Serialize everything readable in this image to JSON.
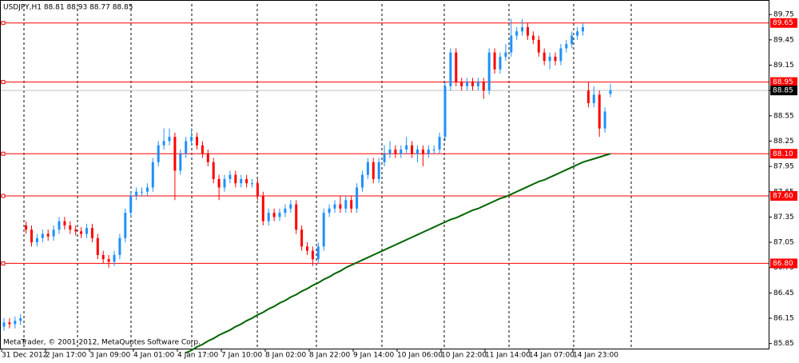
{
  "chart_data": {
    "type": "candlestick",
    "title": "USDJPY,H1 88.81 88.93 88.77 88.85",
    "footer": "MetaTrader, © 2001-2012, MetaQuotes Software Corp.",
    "up_color": "#1e90ff",
    "down_color": "#ff0000",
    "ylim": [
      85.79,
      89.875
    ],
    "yticks": [
      89.75,
      89.45,
      89.15,
      88.85,
      88.55,
      88.25,
      87.95,
      87.65,
      87.35,
      87.05,
      86.75,
      86.45,
      86.15,
      85.85
    ],
    "time_labels": [
      "31 Dec 2012",
      "2 Jan 17:00",
      "3 Jan 09:00",
      "4 Jan 01:00",
      "4 Jan 17:00",
      "7 Jan 10:00",
      "8 Jan 02:00",
      "8 Jan 22:00",
      "9 Jan 14:00",
      "10 Jan 06:00",
      "10 Jan 22:00",
      "11 Jan 14:00",
      "14 Jan 07:00",
      "14 Jan 23:00"
    ],
    "open": [
      86.05,
      86.1,
      86.08,
      86.12,
      87.25,
      87.2,
      87.05,
      87.1,
      87.15,
      87.12,
      87.2,
      87.3,
      87.25,
      87.2,
      87.18,
      87.15,
      87.22,
      87.1,
      86.9,
      86.85,
      86.82,
      86.9,
      87.1,
      87.4,
      87.6,
      87.65,
      87.65,
      87.7,
      88.0,
      88.2,
      88.25,
      88.3,
      87.9,
      88.1,
      88.25,
      88.3,
      88.2,
      88.1,
      88.0,
      87.8,
      87.7,
      87.8,
      87.85,
      87.75,
      87.8,
      87.75,
      87.75,
      87.6,
      87.3,
      87.4,
      87.35,
      87.4,
      87.45,
      87.5,
      87.2,
      87.0,
      86.95,
      86.85,
      87.0,
      87.4,
      87.45,
      87.5,
      87.45,
      87.55,
      87.45,
      87.7,
      87.85,
      88.0,
      87.8,
      88.0,
      88.1,
      88.15,
      88.1,
      88.15,
      88.2,
      88.1,
      88.15,
      88.1,
      88.15,
      88.15,
      88.3,
      88.9,
      89.3,
      88.95,
      88.9,
      88.95,
      88.9,
      88.95,
      88.85,
      89.3,
      89.1,
      89.25,
      89.3,
      89.5,
      89.55,
      89.6,
      89.5,
      89.45,
      89.3,
      89.2,
      89.25,
      89.2,
      89.35,
      89.4,
      89.5,
      89.55,
      88.85,
      88.7,
      88.8,
      88.4,
      88.81
    ],
    "high": [
      86.15,
      86.15,
      86.17,
      86.2,
      87.3,
      87.25,
      87.15,
      87.2,
      87.2,
      87.25,
      87.35,
      87.35,
      87.3,
      87.25,
      87.23,
      87.27,
      87.27,
      87.15,
      86.95,
      86.9,
      86.95,
      87.15,
      87.45,
      87.65,
      87.7,
      87.7,
      87.75,
      88.05,
      88.25,
      88.4,
      88.4,
      88.35,
      88.15,
      88.3,
      88.4,
      88.35,
      88.25,
      88.15,
      88.05,
      87.85,
      87.85,
      87.9,
      87.9,
      87.85,
      87.85,
      87.8,
      87.8,
      87.65,
      87.45,
      87.45,
      87.45,
      87.5,
      87.55,
      87.55,
      87.25,
      87.05,
      87.0,
      87.05,
      87.45,
      87.5,
      87.55,
      87.6,
      87.6,
      87.6,
      87.75,
      87.9,
      88.05,
      88.05,
      88.05,
      88.2,
      88.25,
      88.2,
      88.2,
      88.3,
      88.25,
      88.2,
      88.2,
      88.2,
      88.2,
      88.35,
      88.95,
      89.35,
      89.35,
      89.0,
      89.0,
      89.0,
      89.0,
      89.0,
      89.35,
      89.35,
      89.3,
      89.4,
      89.7,
      89.6,
      89.7,
      89.65,
      89.55,
      89.5,
      89.35,
      89.3,
      89.3,
      89.4,
      89.45,
      89.55,
      89.6,
      89.65,
      88.95,
      88.9,
      88.85,
      88.65,
      88.93
    ],
    "low": [
      86.0,
      86.03,
      86.03,
      86.07,
      87.15,
      87.0,
      87.0,
      87.05,
      87.07,
      87.07,
      87.15,
      87.2,
      87.15,
      87.13,
      87.1,
      87.1,
      87.05,
      86.85,
      86.8,
      86.75,
      86.77,
      86.85,
      87.05,
      87.35,
      87.55,
      87.6,
      87.6,
      87.65,
      87.95,
      88.15,
      88.2,
      87.55,
      87.85,
      88.05,
      88.2,
      88.15,
      88.05,
      87.95,
      87.75,
      87.55,
      87.65,
      87.75,
      87.7,
      87.7,
      87.7,
      87.7,
      87.55,
      87.25,
      87.25,
      87.3,
      87.3,
      87.35,
      87.4,
      87.15,
      86.95,
      86.9,
      86.77,
      86.8,
      86.95,
      87.35,
      87.4,
      87.4,
      87.4,
      87.4,
      87.4,
      87.65,
      87.8,
      87.75,
      87.75,
      87.95,
      88.05,
      88.05,
      88.05,
      88.1,
      88.05,
      88.0,
      87.95,
      88.05,
      88.1,
      88.1,
      88.25,
      88.85,
      88.9,
      88.85,
      88.85,
      88.85,
      88.85,
      88.75,
      88.8,
      89.05,
      89.05,
      89.2,
      89.25,
      89.45,
      89.5,
      89.45,
      89.4,
      89.25,
      89.15,
      89.1,
      89.15,
      89.15,
      89.3,
      89.35,
      89.45,
      89.5,
      88.65,
      88.65,
      88.3,
      88.35,
      88.77
    ],
    "close": [
      86.1,
      86.08,
      86.12,
      86.15,
      87.2,
      87.05,
      87.1,
      87.15,
      87.12,
      87.2,
      87.3,
      87.25,
      87.2,
      87.18,
      87.15,
      87.22,
      87.1,
      86.9,
      86.85,
      86.82,
      86.9,
      87.1,
      87.4,
      87.6,
      87.65,
      87.65,
      87.7,
      88.0,
      88.2,
      88.25,
      88.3,
      87.9,
      88.1,
      88.25,
      88.3,
      88.2,
      88.1,
      88.0,
      87.8,
      87.7,
      87.8,
      87.85,
      87.75,
      87.8,
      87.75,
      87.75,
      87.6,
      87.3,
      87.4,
      87.35,
      87.4,
      87.45,
      87.5,
      87.2,
      87.0,
      86.95,
      86.85,
      87.0,
      87.4,
      87.45,
      87.5,
      87.45,
      87.55,
      87.45,
      87.7,
      87.85,
      88.0,
      87.8,
      88.0,
      88.1,
      88.15,
      88.1,
      88.15,
      88.2,
      88.1,
      88.15,
      88.1,
      88.15,
      88.15,
      88.3,
      88.9,
      89.3,
      88.95,
      88.9,
      88.95,
      88.9,
      88.95,
      88.85,
      89.3,
      89.1,
      89.25,
      89.3,
      89.5,
      89.55,
      89.6,
      89.5,
      89.45,
      89.3,
      89.2,
      89.25,
      89.2,
      89.35,
      89.4,
      89.5,
      89.55,
      89.6,
      88.7,
      88.8,
      88.4,
      88.6,
      88.85
    ],
    "ma": {
      "color": "#006400",
      "values": [
        null,
        null,
        null,
        null,
        null,
        null,
        null,
        null,
        null,
        null,
        null,
        null,
        null,
        null,
        null,
        null,
        null,
        null,
        null,
        null,
        null,
        null,
        null,
        null,
        null,
        null,
        null,
        null,
        null,
        null,
        null,
        null,
        null,
        85.74,
        85.77,
        85.81,
        85.84,
        85.88,
        85.91,
        85.95,
        85.98,
        86.01,
        86.05,
        86.08,
        86.12,
        86.15,
        86.19,
        86.22,
        86.26,
        86.29,
        86.33,
        86.36,
        86.4,
        86.43,
        86.47,
        86.5,
        86.54,
        86.57,
        86.61,
        86.64,
        86.68,
        86.71,
        86.75,
        86.78,
        86.81,
        86.84,
        86.87,
        86.9,
        86.93,
        86.96,
        86.99,
        87.02,
        87.05,
        87.08,
        87.11,
        87.14,
        87.17,
        87.2,
        87.23,
        87.26,
        87.29,
        87.32,
        87.34,
        87.37,
        87.4,
        87.43,
        87.45,
        87.48,
        87.51,
        87.54,
        87.57,
        87.59,
        87.62,
        87.65,
        87.68,
        87.71,
        87.74,
        87.77,
        87.79,
        87.82,
        87.85,
        87.88,
        87.91,
        87.94,
        87.97,
        88.0,
        88.02,
        88.04,
        88.06,
        88.08,
        88.1
      ]
    },
    "levels": {
      "color": "#ff0000",
      "values": [
        {
          "value": 89.65,
          "label": "89.65"
        },
        {
          "value": 88.95,
          "label": "88.95"
        },
        {
          "value": 88.1,
          "label": "88.10"
        },
        {
          "value": 87.6,
          "label": "87.60"
        },
        {
          "value": 86.8,
          "label": "86.80"
        }
      ]
    },
    "last_price": 88.85
  }
}
